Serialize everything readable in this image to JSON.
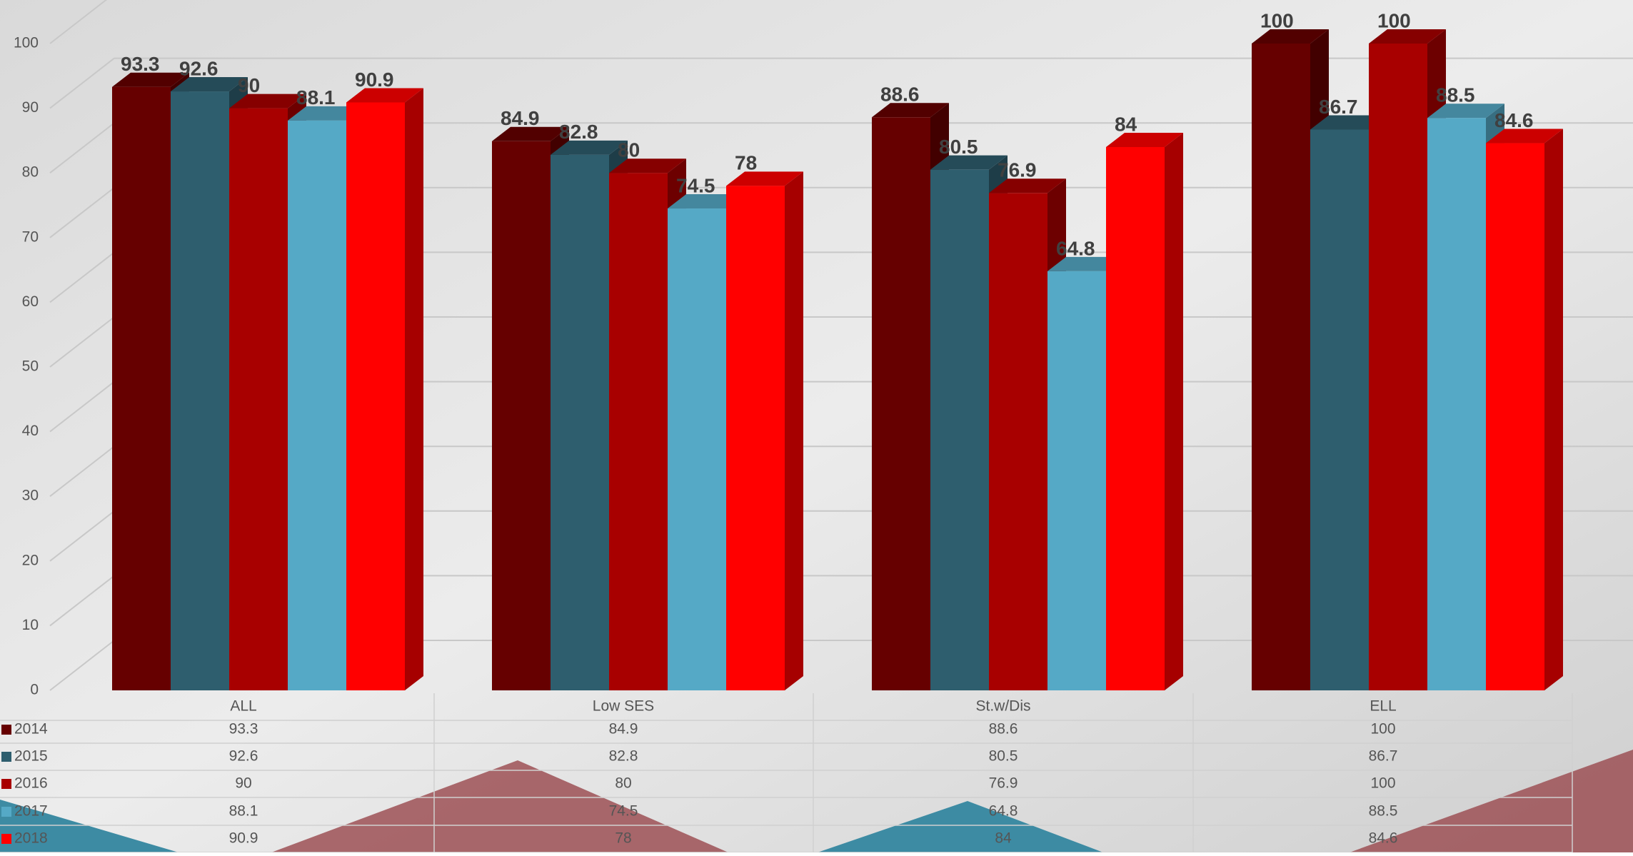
{
  "chart_data": {
    "type": "bar3d",
    "categories": [
      "ALL",
      "Low SES",
      "St.w/Dis",
      "ELL"
    ],
    "series": [
      {
        "name": "2014",
        "color": "#660000",
        "values": [
          93.3,
          84.9,
          88.6,
          100
        ]
      },
      {
        "name": "2015",
        "color": "#2e5e6e",
        "values": [
          92.6,
          82.8,
          80.5,
          86.7
        ]
      },
      {
        "name": "2016",
        "color": "#a80000",
        "values": [
          90,
          80,
          76.9,
          100
        ]
      },
      {
        "name": "2017",
        "color": "#55a9c6",
        "values": [
          88.1,
          74.5,
          64.8,
          88.5
        ]
      },
      {
        "name": "2018",
        "color": "#ff0000",
        "values": [
          90.9,
          78,
          84,
          84.6
        ]
      }
    ],
    "ylim": [
      0,
      100
    ],
    "yticks": [
      0,
      10,
      20,
      30,
      40,
      50,
      60,
      70,
      80,
      90,
      100
    ],
    "grid": true,
    "data_table": true
  }
}
